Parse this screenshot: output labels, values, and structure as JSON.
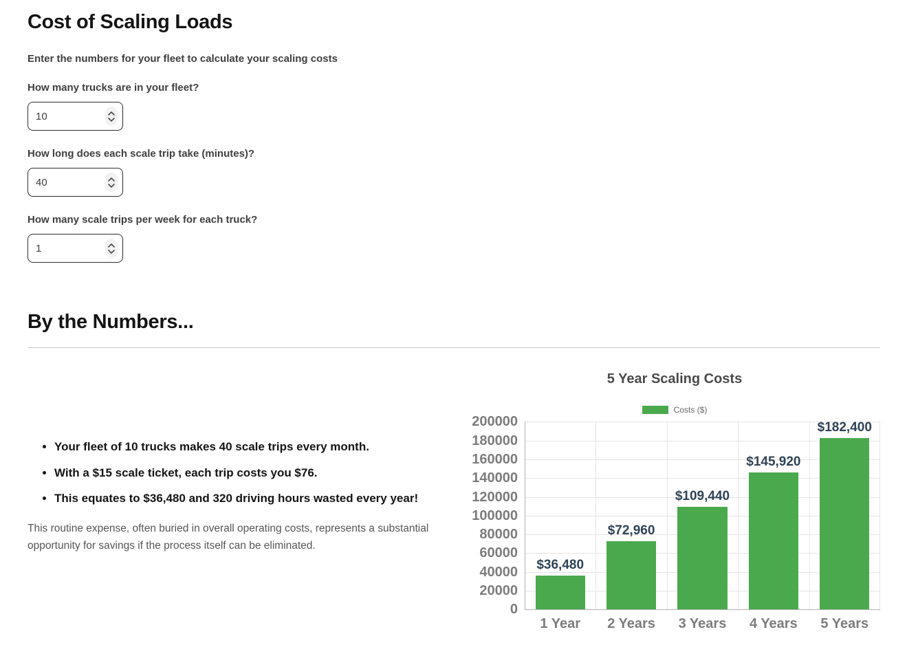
{
  "page": {
    "calculator": {
      "title": "Cost of Scaling Loads",
      "subtitle": "Enter the numbers for your fleet to calculate your scaling costs",
      "fields": [
        {
          "label": "How many trucks are in your fleet?",
          "value": "10"
        },
        {
          "label": "How long does each scale trip take (minutes)?",
          "value": "40"
        },
        {
          "label": "How many scale trips per week for each truck?",
          "value": "1"
        }
      ]
    },
    "results": {
      "heading": "By the Numbers...",
      "bullets": [
        "Your fleet of 10 trucks makes 40 scale trips every month.",
        "With a $15 scale ticket, each trip costs you $76.",
        "This equates to $36,480 and 320 driving hours wasted every year!"
      ],
      "note": "This routine expense, often buried in overall operating costs, represents a substantial opportunity for savings if the process itself can be eliminated."
    }
  },
  "chart_data": {
    "type": "bar",
    "title": "5 Year Scaling Costs",
    "legend": [
      {
        "label": "Costs ($)",
        "color": "#4aa94d"
      }
    ],
    "legend_position": "top",
    "categories": [
      "1 Year",
      "2 Years",
      "3 Years",
      "4 Years",
      "5 Years"
    ],
    "values": [
      36480,
      72960,
      109440,
      145920,
      182400
    ],
    "value_labels": [
      "$36,480",
      "$72,960",
      "$109,440",
      "$145,920",
      "$182,400"
    ],
    "ylim": [
      0,
      200000
    ],
    "y_ticks": [
      200000,
      180000,
      160000,
      140000,
      120000,
      100000,
      80000,
      60000,
      40000,
      20000,
      0
    ],
    "grid": true,
    "bar_color": "#4aa94d",
    "label_color": "#2e4356",
    "axis_text_color": "#7c7c7c"
  }
}
